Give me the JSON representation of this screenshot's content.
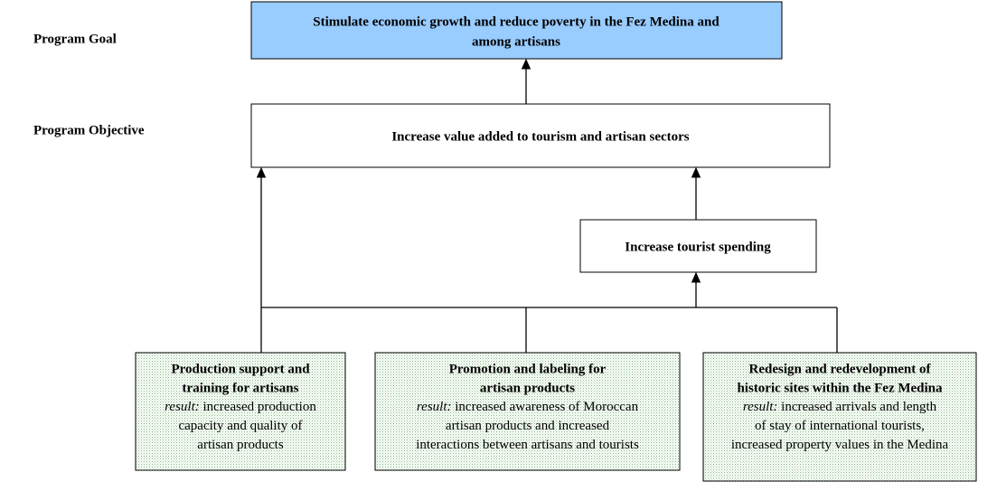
{
  "labels": {
    "goal": "Program Goal",
    "objective": "Program Objective"
  },
  "goal": [
    "Stimulate economic growth and reduce poverty in the Fez Medina and",
    "among artisans"
  ],
  "objective": "Increase value added to tourism and artisan sectors",
  "intermediate": "Increase tourist spending",
  "activities": [
    {
      "title": [
        "Production support and",
        "training for artisans"
      ],
      "result_label": "result:",
      "result": [
        "increased production",
        "capacity and quality of",
        "artisan products"
      ]
    },
    {
      "title": [
        "Promotion and labeling for",
        "artisan products"
      ],
      "result_label": "result:",
      "result": [
        "increased awareness of Moroccan",
        "artisan products and increased",
        "interactions between artisans and tourists"
      ]
    },
    {
      "title": [
        "Redesign and redevelopment of",
        "historic sites within the Fez Medina"
      ],
      "result_label": "result:",
      "result": [
        "increased arrivals and length",
        "of stay of international tourists,",
        "increased property values in the Medina"
      ]
    }
  ]
}
